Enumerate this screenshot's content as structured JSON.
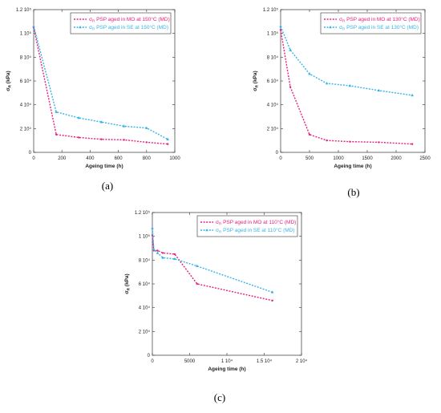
{
  "chart_data": [
    {
      "type": "line",
      "panel_label": "(a)",
      "xlabel": "Ageing time (h)",
      "ylabel": "σR (kPa)",
      "xlim": [
        0,
        1000
      ],
      "ylim": [
        0,
        120000
      ],
      "xticks": [
        0,
        200,
        400,
        600,
        800,
        1000
      ],
      "xtick_labels": [
        "0",
        "200",
        "400",
        "600",
        "800",
        "1000"
      ],
      "yticks": [
        0,
        20000,
        40000,
        60000,
        80000,
        100000,
        120000
      ],
      "ytick_labels": [
        "0",
        "2 10⁴",
        "4 10⁴",
        "6 10⁴",
        "8 10⁴",
        "1 10⁵",
        "1.2 10⁵"
      ],
      "legend_position": "top-right",
      "series": [
        {
          "name": "σR PSP aged in MO at 150°C (MD)",
          "color": "#e8217d",
          "marker": "dot",
          "x": [
            0,
            160,
            320,
            480,
            640,
            800,
            950
          ],
          "y": [
            105000,
            15000,
            12500,
            11000,
            10500,
            8500,
            7000
          ]
        },
        {
          "name": "σR PSP aged in SE at 150°C (MD)",
          "color": "#36b4e8",
          "marker": "triangle",
          "x": [
            0,
            160,
            320,
            480,
            640,
            800,
            950
          ],
          "y": [
            106000,
            34000,
            29000,
            25500,
            22000,
            20500,
            11000
          ]
        }
      ]
    },
    {
      "type": "line",
      "panel_label": "(b)",
      "xlabel": "Ageing time (h)",
      "ylabel": "σR (kPa)",
      "xlim": [
        0,
        2500
      ],
      "ylim": [
        0,
        120000
      ],
      "xticks": [
        0,
        500,
        1000,
        1500,
        2000,
        2500
      ],
      "xtick_labels": [
        "0",
        "500",
        "1000",
        "1500",
        "2000",
        "2500"
      ],
      "yticks": [
        0,
        20000,
        40000,
        60000,
        80000,
        100000,
        120000
      ],
      "ytick_labels": [
        "0",
        "2 10⁴",
        "4 10⁴",
        "6 10⁴",
        "8 10⁴",
        "1 10⁵",
        "1.2 10⁵"
      ],
      "legend_position": "top-right",
      "series": [
        {
          "name": "σR PSP aged in MO at 130°C (MD)",
          "color": "#e8217d",
          "marker": "dot",
          "x": [
            0,
            168,
            500,
            800,
            1200,
            1700,
            2280
          ],
          "y": [
            103000,
            55000,
            15000,
            10000,
            9000,
            8500,
            7000
          ]
        },
        {
          "name": "σR PSP aged in SE at 130°C (MD)",
          "color": "#36b4e8",
          "marker": "triangle",
          "x": [
            0,
            168,
            500,
            800,
            1200,
            1700,
            2280
          ],
          "y": [
            106000,
            86000,
            66000,
            58000,
            56000,
            52000,
            48000
          ]
        }
      ]
    },
    {
      "type": "line",
      "panel_label": "(c)",
      "xlabel": "Ageing time (h)",
      "ylabel": "σR (kPa)",
      "xlim": [
        0,
        20000
      ],
      "ylim": [
        0,
        120000
      ],
      "xticks": [
        0,
        5000,
        10000,
        15000,
        20000
      ],
      "xtick_labels": [
        "0",
        "5000",
        "1 10⁴",
        "1.5 10⁴",
        "2 10⁴"
      ],
      "yticks": [
        0,
        20000,
        40000,
        60000,
        80000,
        100000,
        120000
      ],
      "ytick_labels": [
        "0",
        "2 10⁴",
        "4 10⁴",
        "6 10⁴",
        "8 10⁴",
        "1 10⁵",
        "1.2 10⁵"
      ],
      "legend_position": "top-right",
      "series": [
        {
          "name": "σR PSP aged in MO at 110°C (MD)",
          "color": "#e8217d",
          "marker": "dot",
          "x": [
            0,
            200,
            700,
            1400,
            3000,
            6000,
            16100
          ],
          "y": [
            101000,
            88000,
            88000,
            86000,
            85000,
            60000,
            46000
          ]
        },
        {
          "name": "σR PSP aged in SE at 110°C (MD)",
          "color": "#36b4e8",
          "marker": "triangle",
          "x": [
            0,
            200,
            700,
            1400,
            3000,
            6000,
            16100
          ],
          "y": [
            107000,
            89000,
            86000,
            82000,
            81000,
            75000,
            53000
          ]
        }
      ]
    }
  ]
}
